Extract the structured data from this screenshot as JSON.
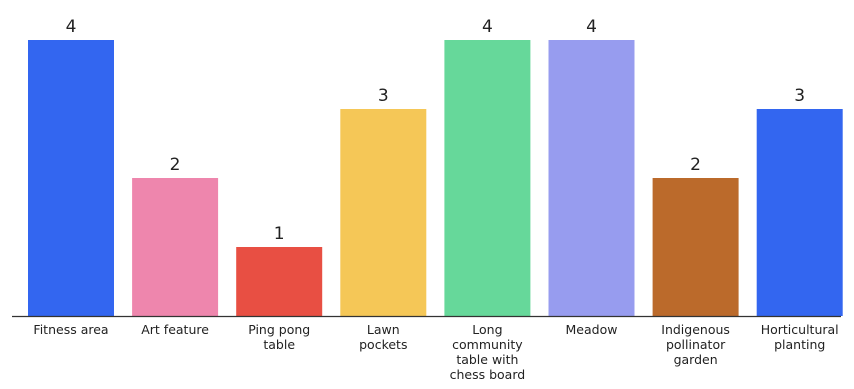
{
  "chart_data": {
    "type": "bar",
    "categories": [
      "Fitness area",
      "Art feature",
      "Ping pong table",
      "Lawn pockets",
      "Long community table with chess board",
      "Meadow",
      "Indigenous pollinator garden",
      "Horticultural planting"
    ],
    "category_label_lines": [
      [
        "Fitness area"
      ],
      [
        "Art feature"
      ],
      [
        "Ping pong",
        "table"
      ],
      [
        "Lawn",
        "pockets"
      ],
      [
        "Long",
        "community",
        "table with",
        "chess board"
      ],
      [
        "Meadow"
      ],
      [
        "Indigenous",
        "pollinator",
        "garden"
      ],
      [
        "Horticultural",
        "planting"
      ]
    ],
    "values": [
      4,
      2,
      1,
      3,
      4,
      4,
      2,
      3
    ],
    "value_labels": [
      "4",
      "2",
      "1",
      "3",
      "4",
      "4",
      "2",
      "3"
    ],
    "colors": [
      "#3366f0",
      "#ee86ad",
      "#e84f43",
      "#f5c757",
      "#66d89a",
      "#979cef",
      "#bb6a2b",
      "#3366f0"
    ],
    "axis_color": "#333333",
    "title": "",
    "xlabel": "",
    "ylabel": "",
    "ylim": [
      0,
      4
    ],
    "grid": false,
    "legend": "none"
  }
}
